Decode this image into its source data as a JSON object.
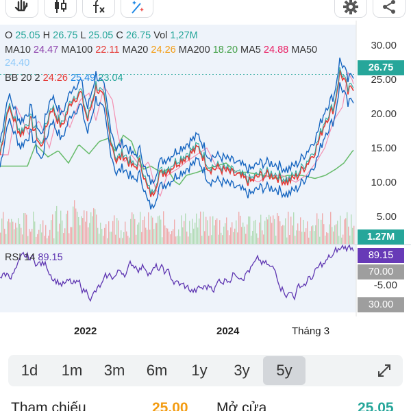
{
  "toolbar": {
    "icons": [
      "hand-icon",
      "candlestick-icon",
      "function-icon",
      "magic-icon",
      "gear-icon",
      "share-icon"
    ]
  },
  "ohlc": {
    "o_label": "O",
    "o": "25.05",
    "h_label": "H",
    "h": "26.75",
    "l_label": "L",
    "l": "25.05",
    "c_label": "C",
    "c": "26.75",
    "vol_label": "Vol",
    "vol": "1,27M"
  },
  "ma": {
    "ma10_label": "MA10",
    "ma10": "24.47",
    "ma100_label": "MA100",
    "ma100": "22.11",
    "ma20_label": "MA20",
    "ma20": "24.26",
    "ma200_label": "MA200",
    "ma200": "18.20",
    "ma5_label": "MA5",
    "ma5": "24.88",
    "ma50_label": "MA50",
    "ma50": "24.40"
  },
  "bb": {
    "label": "BB 20 2",
    "v1": "24.26",
    "v2": "25.49",
    "v3": "23.04"
  },
  "y_axis": [
    "30.00",
    "25.00",
    "20.00",
    "15.00",
    "10.00",
    "5.00"
  ],
  "price_tag": "26.75",
  "volume_tag": "1.27M",
  "rsi": {
    "label": "RSI 14",
    "value": "89.15",
    "tag_value": "89.15",
    "level_high": "70.00",
    "mid": "-5.00",
    "level_low": "30.00"
  },
  "x_axis": [
    "2022",
    "2024",
    "Tháng 3"
  ],
  "timeframes": [
    "1d",
    "1m",
    "3m",
    "6m",
    "1y",
    "3y",
    "5y"
  ],
  "active_timeframe": "5y",
  "quote": {
    "ref_label": "Tham chiếu",
    "ref_value": "25.00",
    "open_label": "Mở cửa",
    "open_value": "25.05"
  },
  "colors": {
    "up": "#26a69a",
    "down": "#ef5350",
    "bb": "#1565c0",
    "rsi": "#5e35b1",
    "ma_green": "#66bb6a",
    "ma_red": "#e53935",
    "ma_pink": "#f48fb1"
  }
}
